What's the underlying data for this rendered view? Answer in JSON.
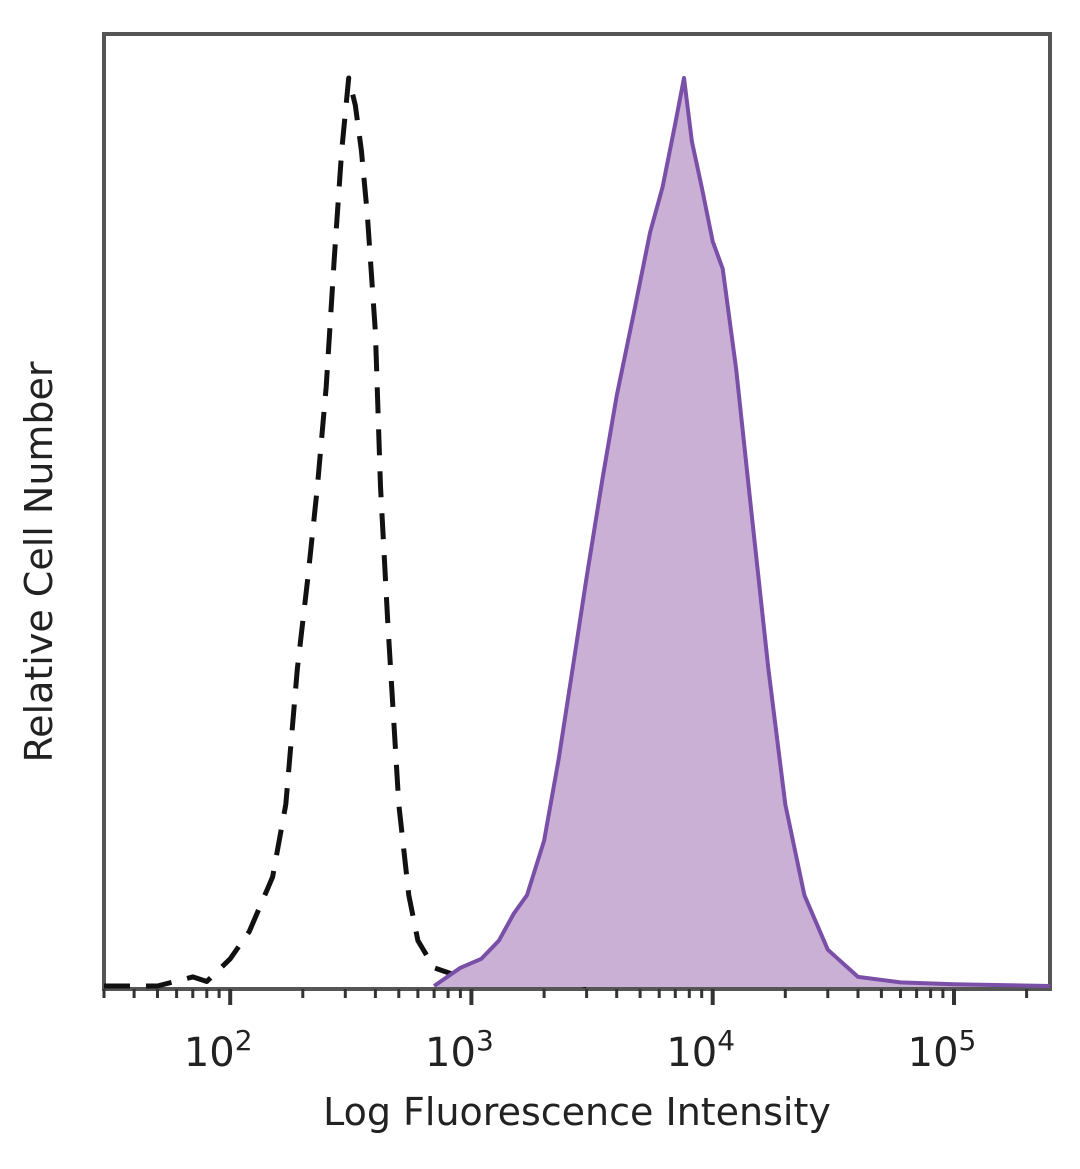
{
  "chart_data": {
    "type": "area",
    "xlabel": "Log Fluorescence Intensity",
    "ylabel": "Relative Cell Number",
    "x_scale": "log",
    "xlim": [
      30,
      250000
    ],
    "ylim": [
      0,
      1
    ],
    "grid": false,
    "x_ticks": [
      {
        "value": 100,
        "base": "10",
        "exp": "2"
      },
      {
        "value": 1000,
        "base": "10",
        "exp": "3"
      },
      {
        "value": 10000,
        "base": "10",
        "exp": "4"
      },
      {
        "value": 100000,
        "base": "10",
        "exp": "5"
      }
    ],
    "series": [
      {
        "style": "dashed-outline",
        "color": "#111111",
        "points": [
          [
            30,
            0
          ],
          [
            50,
            0
          ],
          [
            70,
            0.01
          ],
          [
            80,
            0.005
          ],
          [
            100,
            0.03
          ],
          [
            120,
            0.06
          ],
          [
            150,
            0.12
          ],
          [
            170,
            0.2
          ],
          [
            190,
            0.35
          ],
          [
            210,
            0.45
          ],
          [
            230,
            0.55
          ],
          [
            250,
            0.66
          ],
          [
            270,
            0.8
          ],
          [
            290,
            0.92
          ],
          [
            310,
            1.0
          ],
          [
            330,
            0.97
          ],
          [
            350,
            0.92
          ],
          [
            370,
            0.85
          ],
          [
            400,
            0.72
          ],
          [
            420,
            0.55
          ],
          [
            450,
            0.4
          ],
          [
            500,
            0.2
          ],
          [
            550,
            0.1
          ],
          [
            600,
            0.05
          ],
          [
            700,
            0.02
          ],
          [
            900,
            0.01
          ],
          [
            1200,
            0.02
          ],
          [
            1500,
            0.05
          ],
          [
            1800,
            0.03
          ],
          [
            2200,
            0.01
          ],
          [
            3000,
            0
          ]
        ]
      },
      {
        "style": "filled",
        "color": "#7a4fa8",
        "fill": "#cbb0d6",
        "points": [
          [
            700,
            0
          ],
          [
            900,
            0.02
          ],
          [
            1100,
            0.03
          ],
          [
            1300,
            0.05
          ],
          [
            1500,
            0.08
          ],
          [
            1700,
            0.1
          ],
          [
            2000,
            0.16
          ],
          [
            2300,
            0.25
          ],
          [
            2700,
            0.37
          ],
          [
            3000,
            0.45
          ],
          [
            3500,
            0.56
          ],
          [
            4000,
            0.65
          ],
          [
            4700,
            0.74
          ],
          [
            5500,
            0.83
          ],
          [
            6200,
            0.88
          ],
          [
            7000,
            0.95
          ],
          [
            7600,
            1.0
          ],
          [
            8200,
            0.93
          ],
          [
            9000,
            0.88
          ],
          [
            10000,
            0.82
          ],
          [
            11000,
            0.79
          ],
          [
            12500,
            0.68
          ],
          [
            14500,
            0.52
          ],
          [
            17000,
            0.35
          ],
          [
            20000,
            0.2
          ],
          [
            24000,
            0.1
          ],
          [
            30000,
            0.04
          ],
          [
            40000,
            0.01
          ],
          [
            60000,
            0.004
          ],
          [
            100000,
            0.002
          ],
          [
            250000,
            0
          ]
        ]
      }
    ]
  }
}
